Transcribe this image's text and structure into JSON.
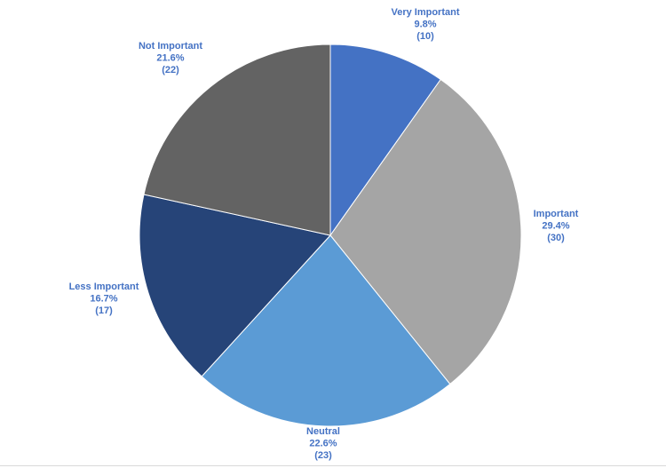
{
  "chart_data": {
    "type": "pie",
    "title": "",
    "start_angle_deg": 0,
    "direction": "clockwise",
    "label_color": "#4472c4",
    "slices": [
      {
        "label": "Very Important",
        "percent": "9.8%",
        "count": "(10)",
        "value": 10,
        "color": "#4472c4"
      },
      {
        "label": "Important",
        "percent": "29.4%",
        "count": "(30)",
        "value": 30,
        "color": "#a5a5a5"
      },
      {
        "label": "Neutral",
        "percent": "22.6%",
        "count": "(23)",
        "value": 23,
        "color": "#5b9bd5"
      },
      {
        "label": "Less Important",
        "percent": "16.7%",
        "count": "(17)",
        "value": 17,
        "color": "#264478"
      },
      {
        "label": "Not Important",
        "percent": "21.6%",
        "count": "(22)",
        "value": 22,
        "color": "#636363"
      }
    ]
  }
}
